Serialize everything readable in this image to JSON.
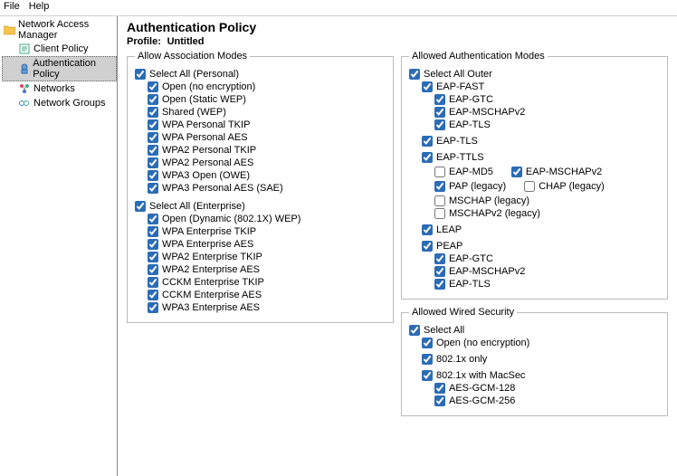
{
  "menu": {
    "file": "File",
    "help": "Help"
  },
  "tree": {
    "root": "Network Access Manager",
    "items": [
      {
        "label": "Client Policy"
      },
      {
        "label": "Authentication Policy",
        "selected": true
      },
      {
        "label": "Networks"
      },
      {
        "label": "Network Groups"
      }
    ]
  },
  "header": {
    "title": "Authentication Policy",
    "profile_label": "Profile:",
    "profile_value": "Untitled"
  },
  "association": {
    "legend": "Allow Association Modes",
    "select_personal": "Select All (Personal)",
    "personal": [
      "Open (no encryption)",
      "Open (Static WEP)",
      "Shared (WEP)",
      "WPA Personal TKIP",
      "WPA Personal AES",
      "WPA2 Personal TKIP",
      "WPA2 Personal AES",
      "WPA3 Open (OWE)",
      "WPA3 Personal AES (SAE)"
    ],
    "select_enterprise": "Select All (Enterprise)",
    "enterprise": [
      "Open (Dynamic (802.1X) WEP)",
      "WPA Enterprise TKIP",
      "WPA Enterprise AES",
      "WPA2 Enterprise TKIP",
      "WPA2 Enterprise AES",
      "CCKM Enterprise TKIP",
      "CCKM Enterprise AES",
      "WPA3 Enterprise AES"
    ]
  },
  "auth": {
    "legend": "Allowed Authentication Modes",
    "select_outer": "Select All Outer",
    "eap_fast": {
      "label": "EAP-FAST",
      "inner": [
        "EAP-GTC",
        "EAP-MSCHAPv2",
        "EAP-TLS"
      ]
    },
    "eap_tls": "EAP-TLS",
    "eap_ttls": {
      "label": "EAP-TTLS",
      "md5": "EAP-MD5",
      "md5_checked": false,
      "mschapv2": "EAP-MSCHAPv2",
      "mschapv2_checked": true,
      "pap": "PAP (legacy)",
      "pap_checked": true,
      "chap": "CHAP (legacy)",
      "chap_checked": false,
      "mschap": "MSCHAP (legacy)",
      "mschap_checked": false,
      "mschapv2l": "MSCHAPv2 (legacy)",
      "mschapv2l_checked": false
    },
    "leap": "LEAP",
    "peap": {
      "label": "PEAP",
      "inner": [
        "EAP-GTC",
        "EAP-MSCHAPv2",
        "EAP-TLS"
      ]
    }
  },
  "wired": {
    "legend": "Allowed Wired Security",
    "select_all": "Select All",
    "open": "Open (no encryption)",
    "dot1x": "802.1x only",
    "macsec": "802.1x with MacSec",
    "macsec_inner": [
      "AES-GCM-128",
      "AES-GCM-256"
    ]
  }
}
